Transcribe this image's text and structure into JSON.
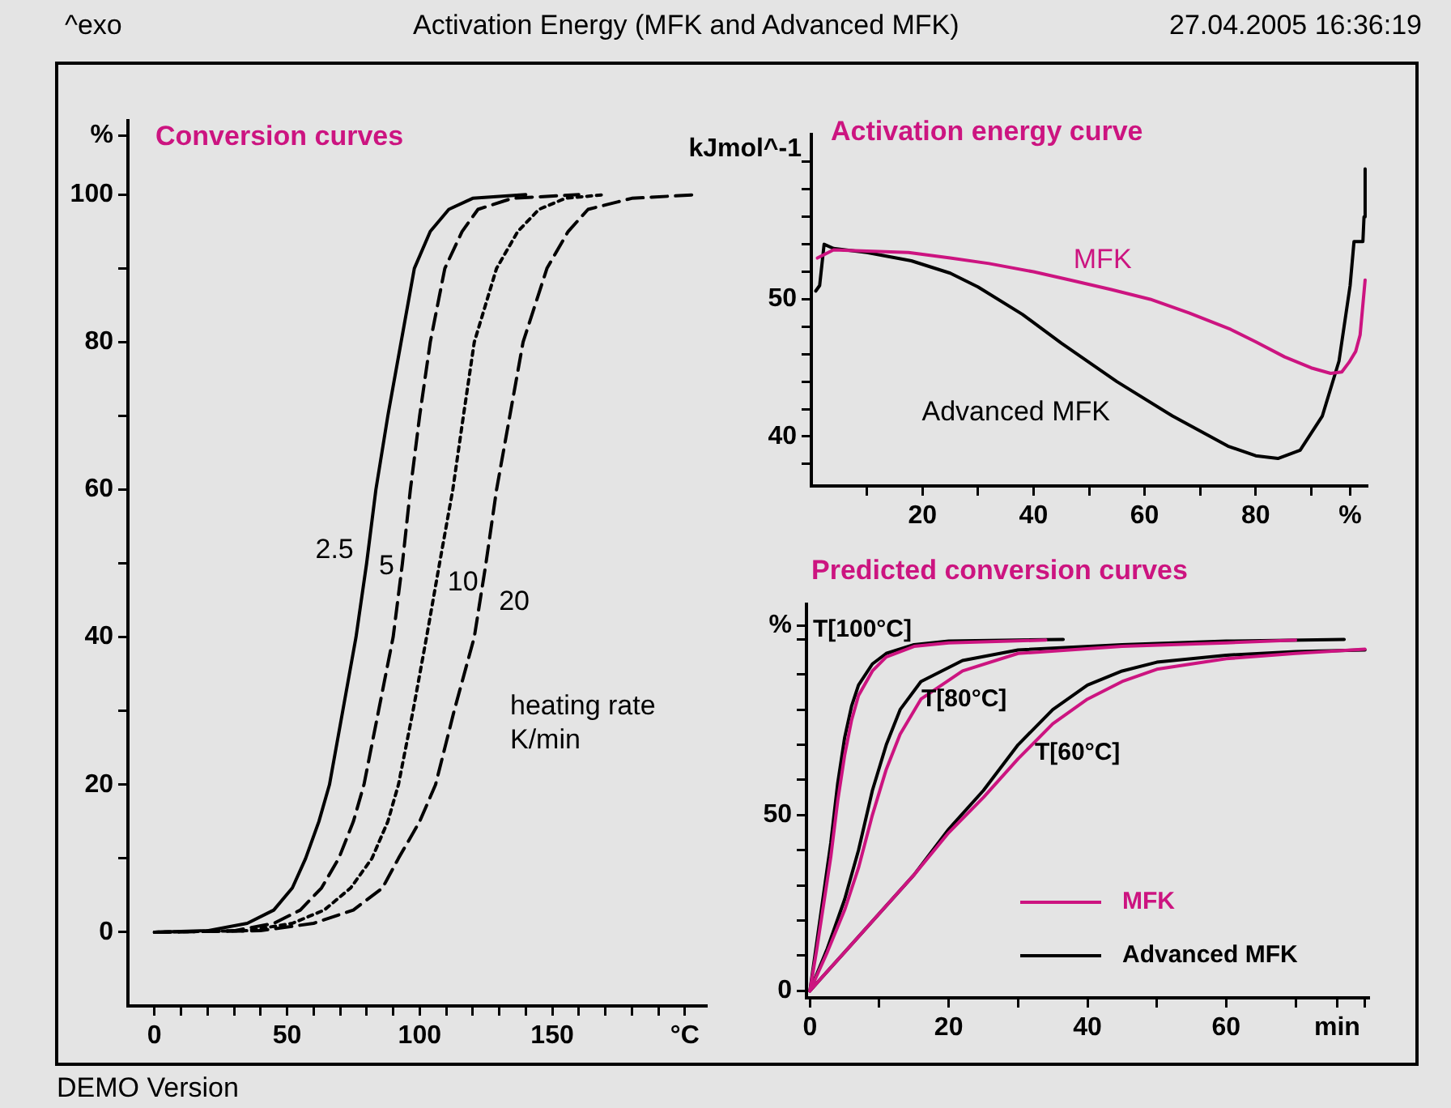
{
  "chart_data": [
    {
      "type": "other",
      "title": "Activation Energy (MFK and Advanced MFK)",
      "annotations": [
        "^exo",
        "27.04.2005 16:36:19",
        "DEMO Version"
      ]
    },
    {
      "type": "line",
      "title": "Conversion curves",
      "marker": "none",
      "grid": false,
      "legend": false,
      "xlim": [
        -10,
        208
      ],
      "xticks": [
        0,
        {
          "value": 10,
          "label": null
        },
        {
          "value": 20,
          "label": null
        },
        {
          "value": 30,
          "label": null
        },
        {
          "value": 40,
          "label": null
        },
        50,
        {
          "value": 60,
          "label": null
        },
        {
          "value": 70,
          "label": null
        },
        {
          "value": 80,
          "label": null
        },
        {
          "value": 90,
          "label": null
        },
        100,
        {
          "value": 110,
          "label": null
        },
        {
          "value": 120,
          "label": null
        },
        {
          "value": 130,
          "label": null
        },
        {
          "value": 140,
          "label": null
        },
        150,
        {
          "value": 160,
          "label": null
        },
        {
          "value": 170,
          "label": null
        },
        {
          "value": 180,
          "label": null
        },
        {
          "value": 190,
          "label": null
        },
        {
          "value": 200,
          "label": "°C"
        }
      ],
      "ylim": [
        -10,
        110
      ],
      "yticks": [
        0,
        {
          "value": 10,
          "label": null
        },
        20,
        {
          "value": 30,
          "label": null
        },
        40,
        {
          "value": 50,
          "label": null
        },
        60,
        {
          "value": 70,
          "label": null
        },
        80,
        {
          "value": 90,
          "label": null
        },
        100,
        {
          "value": 108,
          "label": "%"
        }
      ],
      "annotations": [
        "heating rate K/min"
      ],
      "series": [
        {
          "name": "2.5",
          "color": "#000000",
          "line_style": "solid",
          "x": [
            0,
            20,
            35,
            45,
            52,
            57,
            62,
            66,
            71,
            76,
            80,
            83.5,
            88,
            93,
            98,
            104,
            111,
            120,
            140
          ],
          "values": [
            0,
            0.2,
            1.2,
            3,
            6,
            10,
            15,
            20,
            30,
            40,
            50,
            60,
            70,
            80,
            90,
            95,
            98,
            99.5,
            100
          ]
        },
        {
          "name": "5",
          "color": "#000000",
          "line_style": "dashed",
          "x": [
            0,
            30,
            45,
            55,
            63,
            69.5,
            75,
            79,
            84.5,
            90,
            93.5,
            96.5,
            100,
            104,
            109.5,
            116,
            122,
            135,
            160
          ],
          "values": [
            0,
            0.2,
            1.2,
            3,
            6,
            10,
            15,
            20,
            30,
            40,
            50,
            60,
            70,
            80,
            90,
            95,
            98,
            99.5,
            100
          ]
        },
        {
          "name": "10",
          "color": "#000000",
          "line_style": "dotted",
          "x": [
            0,
            35,
            52,
            64,
            74,
            82,
            88,
            92,
            97.5,
            102.6,
            107.5,
            112.5,
            116.5,
            120.6,
            129,
            137,
            145,
            155,
            170
          ],
          "values": [
            0,
            0.2,
            1.2,
            3,
            6,
            10,
            15,
            20,
            30,
            40,
            50,
            60,
            70,
            80,
            90,
            95,
            98,
            99.5,
            100
          ]
        },
        {
          "name": "20",
          "color": "#000000",
          "line_style": "dashed",
          "x": [
            0,
            40,
            60,
            75,
            86,
            92,
            100,
            106,
            113,
            120.6,
            125,
            129,
            134,
            139,
            148,
            156,
            163.5,
            180,
            205
          ],
          "values": [
            0,
            0.2,
            1.2,
            3,
            6,
            10,
            15,
            20,
            30,
            40,
            50,
            60,
            70,
            80,
            90,
            95,
            98,
            99.5,
            100
          ]
        }
      ]
    },
    {
      "type": "line",
      "title": "Activation energy curve",
      "marker": "none",
      "grid": false,
      "legend": false,
      "xlim": [
        0,
        100
      ],
      "xticks": [
        {
          "value": 10,
          "label": null
        },
        20,
        {
          "value": 30,
          "label": null
        },
        40,
        {
          "value": 50,
          "label": null
        },
        60,
        {
          "value": 70,
          "label": null
        },
        80,
        {
          "value": 90,
          "label": null
        },
        {
          "value": 97,
          "label": "%"
        }
      ],
      "ylim": [
        36.4,
        62
      ],
      "yticks": [
        {
          "value": 38,
          "label": null
        },
        40,
        {
          "value": 42,
          "label": null
        },
        {
          "value": 44,
          "label": null
        },
        {
          "value": 46,
          "label": null
        },
        {
          "value": 48,
          "label": null
        },
        50,
        {
          "value": 52,
          "label": null
        },
        {
          "value": 54,
          "label": null
        },
        {
          "value": 56,
          "label": null
        },
        {
          "value": 58,
          "label": null
        },
        {
          "value": 60,
          "label": null
        }
      ],
      "ylabel": "kJmol^-1",
      "series": [
        {
          "name": "MFK",
          "color": "#cc1480",
          "x": [
            1.1,
            4,
            10,
            17.5,
            25,
            32,
            40,
            46.6,
            54,
            61,
            68,
            75.5,
            80,
            85.2,
            90,
            93.5,
            95.5,
            96.8,
            98,
            98.8,
            99.7
          ],
          "values": [
            53,
            53.6,
            53.5,
            53.4,
            53.0,
            52.6,
            52.0,
            51.4,
            50.7,
            50.0,
            49.0,
            47.8,
            46.9,
            45.8,
            45.0,
            44.6,
            44.7,
            45.4,
            46.2,
            47.4,
            51.4
          ]
        },
        {
          "name": "Advanced MFK",
          "color": "#000000",
          "x": [
            0.8,
            1.5,
            2.3,
            4,
            10,
            18,
            25,
            30,
            38,
            45,
            55,
            65,
            75,
            80,
            84,
            88,
            92,
            95,
            97,
            97.7,
            99.3,
            99.5,
            99.7
          ],
          "values": [
            50.6,
            51,
            54,
            53.7,
            53.4,
            52.8,
            51.9,
            50.9,
            48.9,
            46.8,
            44.0,
            41.5,
            39.3,
            38.6,
            38.4,
            39.0,
            41.5,
            45.5,
            51,
            54.2,
            54.2,
            56,
            59.5
          ]
        }
      ]
    },
    {
      "type": "line",
      "title": "Predicted conversion curves",
      "marker": "none",
      "grid": false,
      "legend": "bottom right",
      "xlim": [
        -0.5,
        80.5
      ],
      "xticks": [
        0,
        {
          "value": 10,
          "label": null
        },
        20,
        {
          "value": 30,
          "label": null
        },
        40,
        {
          "value": 50,
          "label": null
        },
        60,
        {
          "value": 70,
          "label": null
        },
        {
          "value": 76,
          "label": "min"
        },
        {
          "value": 80,
          "label": null
        }
      ],
      "ylim": [
        -2,
        110
      ],
      "yticks": [
        0,
        {
          "value": 10,
          "label": null
        },
        {
          "value": 20,
          "label": null
        },
        {
          "value": 30,
          "label": null
        },
        {
          "value": 40,
          "label": null
        },
        50,
        {
          "value": 60,
          "label": null
        },
        {
          "value": 70,
          "label": null
        },
        {
          "value": 80,
          "label": null
        },
        {
          "value": 90,
          "label": null
        },
        {
          "value": 100,
          "label": null
        },
        {
          "value": 104,
          "label": "%"
        }
      ],
      "annotations": [
        "T[100°C]",
        "T[80°C]",
        "T[60°C]"
      ],
      "series": [
        {
          "name": "MFK",
          "color": "#cc1480",
          "x": [
            0,
            1,
            2,
            3,
            4,
            5,
            6,
            7,
            9,
            11,
            15,
            20,
            34
          ],
          "values": [
            0,
            12,
            25,
            38,
            54,
            67,
            77,
            84,
            91,
            95,
            98,
            99,
            99.8
          ]
        },
        {
          "color": "#cc1480",
          "x": [
            0,
            2.5,
            5,
            7,
            9,
            11,
            13,
            16,
            22,
            30,
            45,
            60,
            70
          ],
          "values": [
            0,
            11,
            23,
            35,
            50,
            63,
            73,
            83,
            91,
            96,
            98,
            99,
            99.8
          ]
        },
        {
          "color": "#cc1480",
          "x": [
            0,
            5,
            10,
            15,
            20,
            25,
            30,
            35,
            40,
            45,
            50,
            60,
            70,
            80
          ],
          "values": [
            0,
            11,
            22,
            33,
            45,
            55,
            66,
            76,
            83,
            88,
            91.5,
            94.5,
            96,
            97.2
          ]
        },
        {
          "name": "Advanced MFK",
          "color": "#000000",
          "x": [
            0,
            1,
            2,
            3,
            4,
            5,
            6,
            7,
            9,
            11,
            15,
            20,
            36.5
          ],
          "values": [
            0,
            14,
            28,
            42,
            59,
            72,
            81,
            87,
            93,
            96,
            98.5,
            99.5,
            100
          ]
        },
        {
          "color": "#000000",
          "x": [
            0,
            2.5,
            5,
            7,
            9,
            11,
            13,
            16,
            22,
            30,
            45,
            60,
            77
          ],
          "values": [
            0,
            12,
            26,
            40,
            57,
            70,
            80,
            88,
            94,
            97,
            98.5,
            99.5,
            100
          ]
        },
        {
          "color": "#000000",
          "x": [
            0,
            5,
            10,
            15,
            20,
            25,
            30,
            35,
            40,
            45,
            50,
            60,
            70,
            80
          ],
          "values": [
            0,
            11,
            22,
            33,
            46,
            57,
            70,
            80,
            87,
            91,
            93.5,
            95.5,
            96.5,
            97
          ]
        }
      ]
    }
  ]
}
